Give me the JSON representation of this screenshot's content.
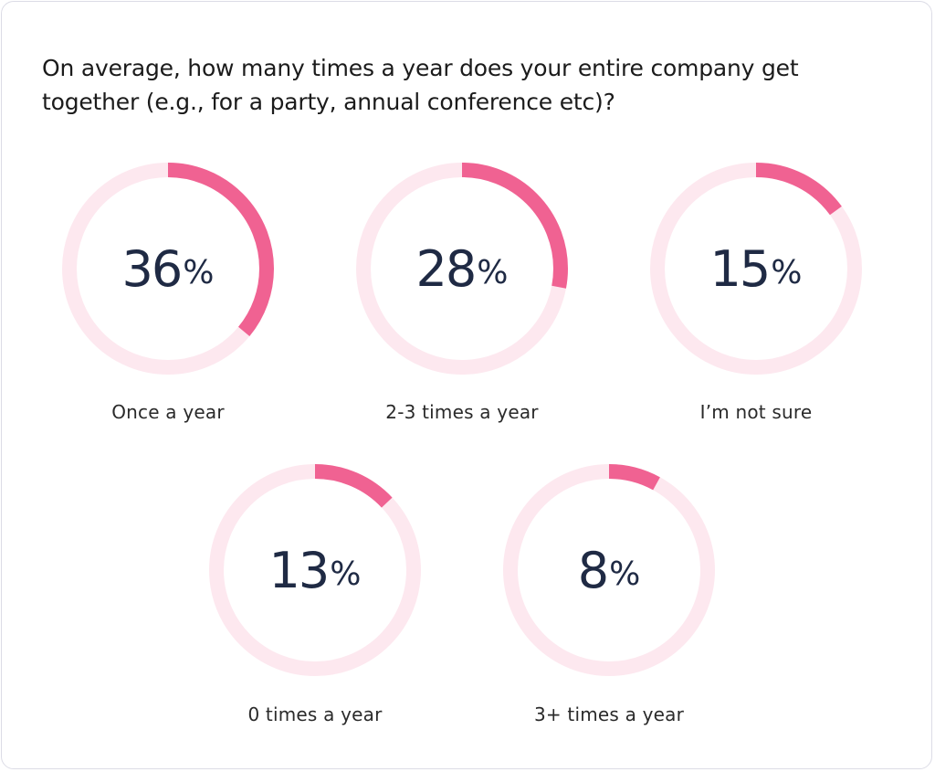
{
  "title": "On average, how many times a year does your entire company get together (e.g., for a party, annual conference etc)?",
  "colors": {
    "arc": "#f06292",
    "track": "#fde8ef",
    "text": "#1f2a44"
  },
  "chart_data": {
    "type": "pie",
    "title": "On average, how many times a year does your entire company get together (e.g., for a party, annual conference etc)?",
    "unit": "%",
    "categories": [
      "Once a year",
      "2-3 times a year",
      "I’m not sure",
      "0 times a year",
      "3+ times a year"
    ],
    "values": [
      36,
      28,
      15,
      13,
      8
    ],
    "items": [
      {
        "label": "Once a year",
        "value": 36,
        "value_text": "36"
      },
      {
        "label": "2-3 times a year",
        "value": 28,
        "value_text": "28"
      },
      {
        "label": "I’m not sure",
        "value": 15,
        "value_text": "15"
      },
      {
        "label": "0 times a year",
        "value": 13,
        "value_text": "13"
      },
      {
        "label": "3+ times a year",
        "value": 8,
        "value_text": "8"
      }
    ]
  }
}
